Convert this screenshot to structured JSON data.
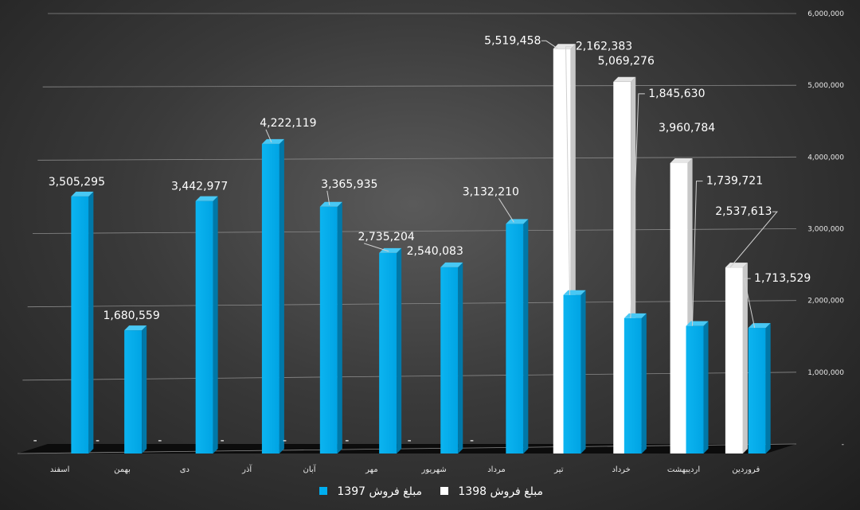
{
  "chart_data": {
    "type": "bar",
    "categories": [
      "اسفند",
      "بهمن",
      "دی",
      "آذر",
      "آبان",
      "مهر",
      "شهریور",
      "مرداد",
      "تیر",
      "خرداد",
      "اردیبهشت",
      "فروردین"
    ],
    "series": [
      {
        "name": "مبلغ فروش 1398",
        "values": [
          null,
          null,
          null,
          null,
          null,
          null,
          null,
          null,
          5519458,
          5069276,
          3960784,
          2537613
        ],
        "color": "#ffffff"
      },
      {
        "name": "مبلغ فروش 1397",
        "values": [
          3505295,
          1680559,
          3442977,
          4222119,
          3365935,
          2735204,
          2540083,
          3132210,
          2162383,
          1845630,
          1739721,
          1713529
        ],
        "color": "#00aeef"
      }
    ],
    "data_labels": {
      "series_1397": [
        "3,505,295",
        "1,680,559",
        "3,442,977",
        "4,222,119",
        "3,365,935",
        "2,735,204",
        "2,540,083",
        "3,132,210",
        "2,162,383",
        "1,845,630",
        "1,739,721",
        "1,713,529"
      ],
      "series_1398": [
        "-",
        "-",
        "-",
        "-",
        "-",
        "-",
        "-",
        "-",
        "5,519,458",
        "5,069,276",
        "3,960,784",
        "2,537,613"
      ]
    },
    "ylim": [
      0,
      6000000
    ],
    "y_ticks": [
      "-",
      "1,000,000",
      "2,000,000",
      "3,000,000",
      "4,000,000",
      "5,000,000",
      "6,000,000"
    ],
    "y_axis_side": "right",
    "grid": true,
    "legend_position": "bottom"
  }
}
